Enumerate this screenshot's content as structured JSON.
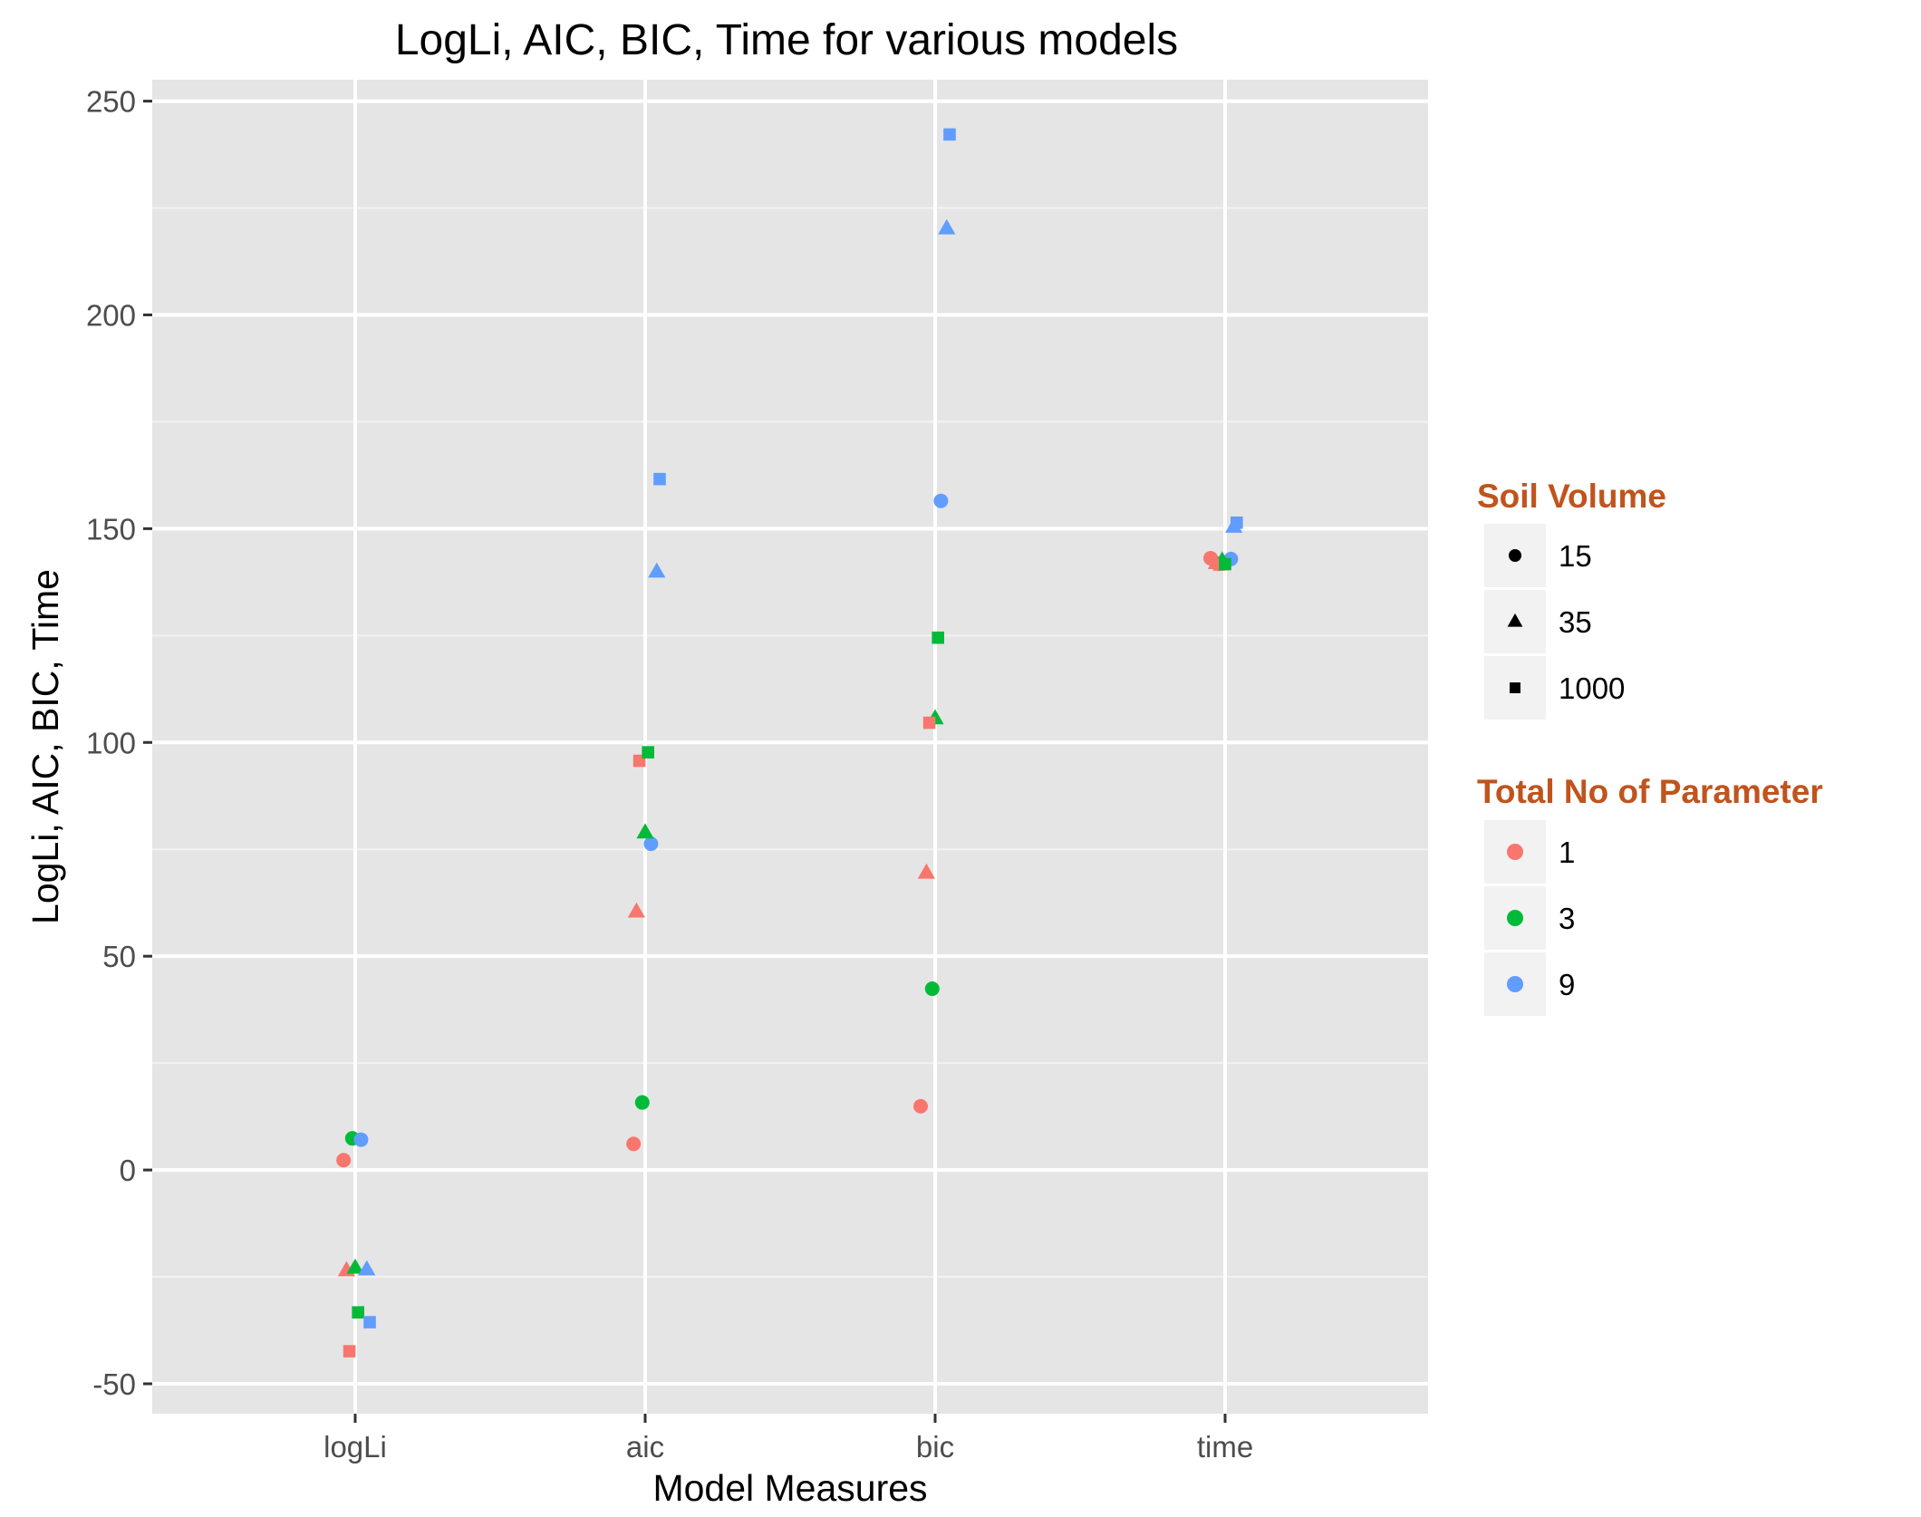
{
  "chart_data": {
    "type": "scatter",
    "title": "LogLi, AIC, BIC, Time for various models",
    "xlabel": "Model Measures",
    "ylabel": "LogLi, AIC, BIC, Time",
    "categories": [
      "logLi",
      "aic",
      "bic",
      "time"
    ],
    "ylim": [
      -57,
      255
    ],
    "yticks": [
      -50,
      0,
      50,
      100,
      150,
      200,
      250
    ],
    "ytick_labels": [
      "-50",
      "0",
      "50",
      "100",
      "150",
      "200",
      "250"
    ],
    "grid": true,
    "legend_placement": "right",
    "shape_legend": {
      "title": "Soil Volume",
      "entries": [
        {
          "label": "15",
          "shape": "circle"
        },
        {
          "label": "35",
          "shape": "triangle"
        },
        {
          "label": "1000",
          "shape": "square"
        }
      ]
    },
    "color_legend": {
      "title": "Total No of Parameter",
      "entries": [
        {
          "label": "1",
          "color": "#F8766D"
        },
        {
          "label": "3",
          "color": "#00BA38"
        },
        {
          "label": "9",
          "color": "#619CFF"
        }
      ]
    },
    "points": [
      {
        "category": "logLi",
        "jitter": -0.04,
        "y": 2.3,
        "soil": "15",
        "param": "1"
      },
      {
        "category": "logLi",
        "jitter": -0.01,
        "y": 7.4,
        "soil": "15",
        "param": "3"
      },
      {
        "category": "logLi",
        "jitter": 0.02,
        "y": 7.1,
        "soil": "15",
        "param": "9"
      },
      {
        "category": "logLi",
        "jitter": -0.03,
        "y": -23.5,
        "soil": "35",
        "param": "1"
      },
      {
        "category": "logLi",
        "jitter": 0.0,
        "y": -22.9,
        "soil": "35",
        "param": "3"
      },
      {
        "category": "logLi",
        "jitter": 0.04,
        "y": -23.3,
        "soil": "35",
        "param": "9"
      },
      {
        "category": "logLi",
        "jitter": -0.02,
        "y": -42.4,
        "soil": "1000",
        "param": "1"
      },
      {
        "category": "logLi",
        "jitter": 0.01,
        "y": -33.3,
        "soil": "1000",
        "param": "3"
      },
      {
        "category": "logLi",
        "jitter": 0.05,
        "y": -35.6,
        "soil": "1000",
        "param": "9"
      },
      {
        "category": "aic",
        "jitter": -0.04,
        "y": 6.1,
        "soil": "15",
        "param": "1"
      },
      {
        "category": "aic",
        "jitter": -0.01,
        "y": 15.8,
        "soil": "15",
        "param": "3"
      },
      {
        "category": "aic",
        "jitter": 0.02,
        "y": 76.3,
        "soil": "15",
        "param": "9"
      },
      {
        "category": "aic",
        "jitter": -0.03,
        "y": 60.4,
        "soil": "35",
        "param": "1"
      },
      {
        "category": "aic",
        "jitter": 0.0,
        "y": 78.9,
        "soil": "35",
        "param": "3"
      },
      {
        "category": "aic",
        "jitter": 0.04,
        "y": 139.9,
        "soil": "35",
        "param": "9"
      },
      {
        "category": "aic",
        "jitter": -0.02,
        "y": 95.7,
        "soil": "1000",
        "param": "1"
      },
      {
        "category": "aic",
        "jitter": 0.01,
        "y": 97.7,
        "soil": "1000",
        "param": "3"
      },
      {
        "category": "aic",
        "jitter": 0.05,
        "y": 161.6,
        "soil": "1000",
        "param": "9"
      },
      {
        "category": "bic",
        "jitter": -0.05,
        "y": 14.9,
        "soil": "15",
        "param": "1"
      },
      {
        "category": "bic",
        "jitter": -0.01,
        "y": 42.4,
        "soil": "15",
        "param": "3"
      },
      {
        "category": "bic",
        "jitter": 0.02,
        "y": 156.5,
        "soil": "15",
        "param": "9"
      },
      {
        "category": "bic",
        "jitter": -0.03,
        "y": 69.5,
        "soil": "35",
        "param": "1"
      },
      {
        "category": "bic",
        "jitter": 0.0,
        "y": 105.6,
        "soil": "35",
        "param": "3"
      },
      {
        "category": "bic",
        "jitter": 0.04,
        "y": 220.2,
        "soil": "35",
        "param": "9"
      },
      {
        "category": "bic",
        "jitter": -0.02,
        "y": 104.6,
        "soil": "1000",
        "param": "1"
      },
      {
        "category": "bic",
        "jitter": 0.01,
        "y": 124.5,
        "soil": "1000",
        "param": "3"
      },
      {
        "category": "bic",
        "jitter": 0.05,
        "y": 242.2,
        "soil": "1000",
        "param": "9"
      },
      {
        "category": "time",
        "jitter": -0.05,
        "y": 143.1,
        "soil": "15",
        "param": "1"
      },
      {
        "category": "time",
        "jitter": -0.02,
        "y": 141.8,
        "soil": "15",
        "param": "3"
      },
      {
        "category": "time",
        "jitter": 0.02,
        "y": 142.9,
        "soil": "15",
        "param": "9"
      },
      {
        "category": "time",
        "jitter": -0.03,
        "y": 141.9,
        "soil": "35",
        "param": "1"
      },
      {
        "category": "time",
        "jitter": -0.01,
        "y": 142.5,
        "soil": "35",
        "param": "3"
      },
      {
        "category": "time",
        "jitter": 0.03,
        "y": 150.4,
        "soil": "35",
        "param": "9"
      },
      {
        "category": "time",
        "jitter": -0.02,
        "y": 141.6,
        "soil": "1000",
        "param": "1"
      },
      {
        "category": "time",
        "jitter": 0.0,
        "y": 141.7,
        "soil": "1000",
        "param": "3"
      },
      {
        "category": "time",
        "jitter": 0.04,
        "y": 151.4,
        "soil": "1000",
        "param": "9"
      }
    ]
  }
}
